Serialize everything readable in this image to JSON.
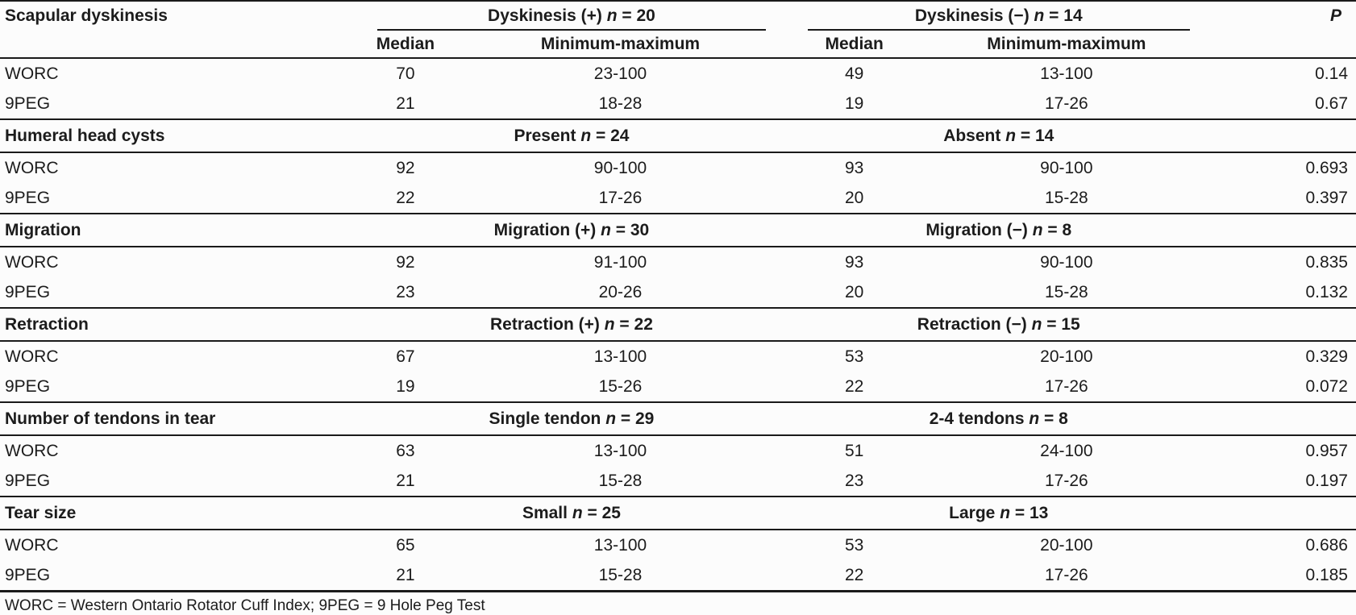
{
  "colors": {
    "background": "#fcfcfc",
    "text": "#1c1c1c",
    "rule": "#1a1a1a"
  },
  "table": {
    "col_headers": {
      "median": "Median",
      "minmax": "Minimum-maximum",
      "p": "P"
    },
    "sections": [
      {
        "label": "Scapular dyskinesis",
        "group1_title": "Dyskinesis (+) _n_ = 20",
        "group2_title": "Dyskinesis (−) _n_ = 14",
        "rows": [
          {
            "label": "WORC",
            "g1_median": "70",
            "g1_minmax": "23-100",
            "g2_median": "49",
            "g2_minmax": "13-100",
            "p": "0.14"
          },
          {
            "label": "9PEG",
            "g1_median": "21",
            "g1_minmax": "18-28",
            "g2_median": "19",
            "g2_minmax": "17-26",
            "p": "0.67"
          }
        ]
      },
      {
        "label": "Humeral head cysts",
        "group1_title": "Present _n_ = 24",
        "group2_title": "Absent _n_ = 14",
        "rows": [
          {
            "label": "WORC",
            "g1_median": "92",
            "g1_minmax": "90-100",
            "g2_median": "93",
            "g2_minmax": "90-100",
            "p": "0.693"
          },
          {
            "label": "9PEG",
            "g1_median": "22",
            "g1_minmax": "17-26",
            "g2_median": "20",
            "g2_minmax": "15-28",
            "p": "0.397"
          }
        ]
      },
      {
        "label": "Migration",
        "group1_title": "Migration (+) _n_ = 30",
        "group2_title": "Migration (−) _n_ = 8",
        "rows": [
          {
            "label": "WORC",
            "g1_median": "92",
            "g1_minmax": "91-100",
            "g2_median": "93",
            "g2_minmax": "90-100",
            "p": "0.835"
          },
          {
            "label": "9PEG",
            "g1_median": "23",
            "g1_minmax": "20-26",
            "g2_median": "20",
            "g2_minmax": "15-28",
            "p": "0.132"
          }
        ]
      },
      {
        "label": "Retraction",
        "group1_title": "Retraction (+) _n_ = 22",
        "group2_title": "Retraction (−) _n_ = 15",
        "rows": [
          {
            "label": "WORC",
            "g1_median": "67",
            "g1_minmax": "13-100",
            "g2_median": "53",
            "g2_minmax": "20-100",
            "p": "0.329"
          },
          {
            "label": "9PEG",
            "g1_median": "19",
            "g1_minmax": "15-26",
            "g2_median": "22",
            "g2_minmax": "17-26",
            "p": "0.072"
          }
        ]
      },
      {
        "label": "Number of tendons in tear",
        "group1_title": "Single tendon _n_ = 29",
        "group2_title": "2-4 tendons _n_ = 8",
        "rows": [
          {
            "label": "WORC",
            "g1_median": "63",
            "g1_minmax": "13-100",
            "g2_median": "51",
            "g2_minmax": "24-100",
            "p": "0.957"
          },
          {
            "label": "9PEG",
            "g1_median": "21",
            "g1_minmax": "15-28",
            "g2_median": "23",
            "g2_minmax": "17-26",
            "p": "0.197"
          }
        ]
      },
      {
        "label": "Tear size",
        "group1_title": "Small _n_ = 25",
        "group2_title": "Large _n_ = 13",
        "rows": [
          {
            "label": "WORC",
            "g1_median": "65",
            "g1_minmax": "13-100",
            "g2_median": "53",
            "g2_minmax": "20-100",
            "p": "0.686"
          },
          {
            "label": "9PEG",
            "g1_median": "21",
            "g1_minmax": "15-28",
            "g2_median": "22",
            "g2_minmax": "17-26",
            "p": "0.185"
          }
        ]
      }
    ],
    "footnote": "WORC = Western Ontario Rotator Cuff Index; 9PEG = 9 Hole Peg Test"
  }
}
